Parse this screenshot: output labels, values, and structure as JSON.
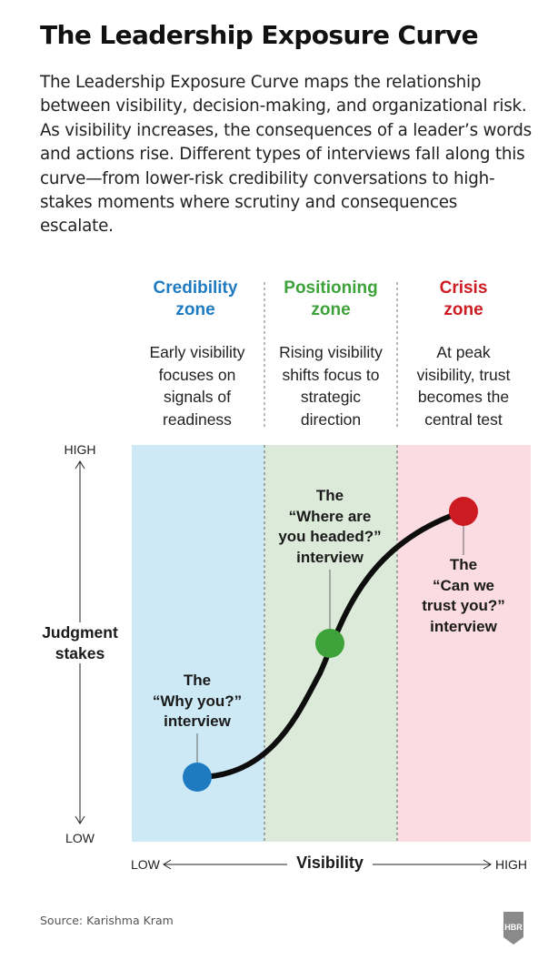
{
  "title": "The Leadership Exposure Curve",
  "intro": "The Leadership Exposure Curve maps the relationship between visibility, decision-making, and organizational risk. As visibility increases, the consequences of a leader’s words and actions rise. Different types of interviews fall along this curve—from lower-risk credibility conversations to high-stakes moments where scrutiny and consequences escalate.",
  "zones": [
    {
      "name_line1": "Credibility",
      "name_line2": "zone",
      "color": "#1f7bc1",
      "fill": "#cde9f5",
      "desc": [
        "Early visibility",
        "focuses on",
        "signals of",
        "readiness"
      ]
    },
    {
      "name_line1": "Positioning",
      "name_line2": "zone",
      "color": "#3da23a",
      "fill": "#dcebd9",
      "desc": [
        "Rising visibility",
        "shifts focus to",
        "strategic",
        "direction"
      ]
    },
    {
      "name_line1": "Crisis",
      "name_line2": "zone",
      "color": "#cc1b22",
      "fill": "#fbdce2",
      "desc": [
        "At peak",
        "visibility, trust",
        "becomes the",
        "central test"
      ]
    }
  ],
  "points": [
    {
      "lines": [
        "The",
        "“Why you?”",
        "interview"
      ],
      "color": "#1f7bc1"
    },
    {
      "lines": [
        "The",
        "“Where are",
        "you headed?”",
        "interview"
      ],
      "color": "#3da23a"
    },
    {
      "lines": [
        "The",
        "“Can we",
        "trust you?”",
        "interview"
      ],
      "color": "#cc1b22"
    }
  ],
  "axes": {
    "y_title_line1": "Judgment",
    "y_title_line2": "stakes",
    "y_high": "HIGH",
    "y_low": "LOW",
    "x_title": "Visibility",
    "x_low": "LOW",
    "x_high": "HIGH"
  },
  "source": "Source: Karishma Kram",
  "logo_text": "HBR"
}
